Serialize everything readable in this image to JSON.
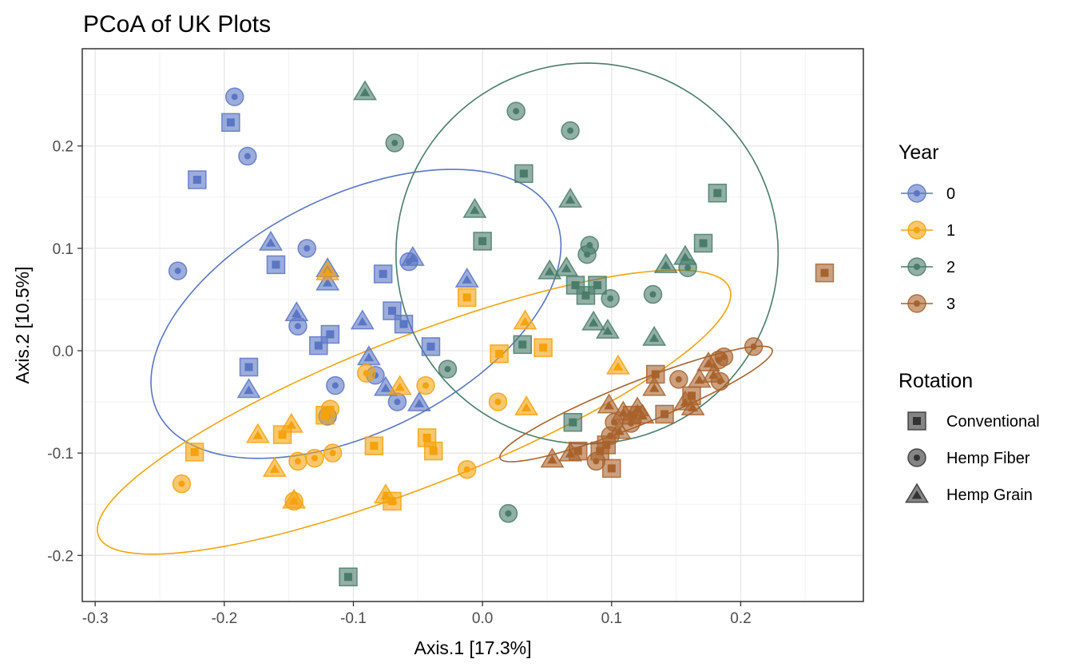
{
  "chart_data": {
    "type": "scatter",
    "title": "PCoA of UK Plots",
    "xlabel": "Axis.1   [17.3%]",
    "ylabel": "Axis.2   [10.5%]",
    "xlim": [
      -0.31,
      0.295
    ],
    "ylim": [
      -0.245,
      0.295
    ],
    "xticks": [
      -0.3,
      -0.2,
      -0.1,
      0.0,
      0.1,
      0.2
    ],
    "xtick_labels": [
      "-0.3",
      "-0.2",
      "-0.1",
      "0.0",
      "0.1",
      "0.2"
    ],
    "yticks": [
      -0.2,
      -0.1,
      0.0,
      0.1,
      0.2
    ],
    "ytick_labels": [
      "-0.2",
      "-0.1",
      "0.0",
      "0.1",
      "0.2"
    ],
    "grid": true,
    "legend_position": "right",
    "legend_year": {
      "title": "Year",
      "entries": [
        {
          "label": "0",
          "color": "#5a76c4"
        },
        {
          "label": "1",
          "color": "#f5a20c"
        },
        {
          "label": "2",
          "color": "#4a7c6a"
        },
        {
          "label": "3",
          "color": "#a8622c"
        }
      ]
    },
    "legend_rotation": {
      "title": "Rotation",
      "entries": [
        {
          "label": "Conventional",
          "shape": "square"
        },
        {
          "label": "Hemp Fiber",
          "shape": "circle"
        },
        {
          "label": "Hemp Grain",
          "shape": "triangle"
        }
      ]
    },
    "ellipses": [
      {
        "year": "0",
        "color": "#5a76c4",
        "cx": -0.098,
        "cy": 0.036,
        "rx": 0.183,
        "ry": 0.108,
        "angle_deg": 38
      },
      {
        "year": "1",
        "color": "#f5a20c",
        "cx": -0.053,
        "cy": -0.06,
        "rx": 0.273,
        "ry": 0.07,
        "angle_deg": 27
      },
      {
        "year": "2",
        "color": "#4a7c6a",
        "cx": 0.081,
        "cy": 0.095,
        "rx": 0.148,
        "ry": 0.186,
        "angle_deg": 0
      },
      {
        "year": "3",
        "color": "#a8622c",
        "cx": 0.119,
        "cy": -0.052,
        "rx": 0.118,
        "ry": 0.02,
        "angle_deg": 27
      }
    ],
    "series": [
      {
        "name": "0",
        "color": "#5a76c4",
        "points": [
          [
            -0.192,
            0.248,
            "circle"
          ],
          [
            -0.195,
            0.223,
            "square"
          ],
          [
            -0.182,
            0.19,
            "circle"
          ],
          [
            -0.221,
            0.167,
            "square"
          ],
          [
            -0.236,
            0.078,
            "circle"
          ],
          [
            -0.164,
            0.106,
            "triangle"
          ],
          [
            -0.16,
            0.084,
            "square"
          ],
          [
            -0.136,
            0.1,
            "circle"
          ],
          [
            -0.12,
            0.08,
            "triangle"
          ],
          [
            -0.12,
            0.067,
            "triangle"
          ],
          [
            -0.077,
            0.075,
            "square"
          ],
          [
            -0.057,
            0.087,
            "circle"
          ],
          [
            -0.054,
            0.091,
            "triangle"
          ],
          [
            -0.012,
            0.07,
            "triangle"
          ],
          [
            -0.144,
            0.037,
            "triangle"
          ],
          [
            -0.143,
            0.024,
            "circle"
          ],
          [
            -0.127,
            0.005,
            "square"
          ],
          [
            -0.118,
            0.016,
            "square"
          ],
          [
            -0.093,
            0.029,
            "triangle"
          ],
          [
            -0.07,
            0.039,
            "square"
          ],
          [
            -0.061,
            0.026,
            "square"
          ],
          [
            -0.04,
            0.004,
            "square"
          ],
          [
            -0.181,
            -0.016,
            "square"
          ],
          [
            -0.181,
            -0.038,
            "triangle"
          ],
          [
            -0.114,
            -0.034,
            "circle"
          ],
          [
            -0.088,
            -0.006,
            "triangle"
          ],
          [
            -0.083,
            -0.024,
            "circle"
          ],
          [
            -0.075,
            -0.036,
            "triangle"
          ],
          [
            -0.066,
            -0.05,
            "circle"
          ],
          [
            -0.049,
            -0.051,
            "triangle"
          ],
          [
            -0.12,
            -0.064,
            "circle"
          ]
        ]
      },
      {
        "name": "1",
        "color": "#f5a20c",
        "points": [
          [
            -0.012,
            0.052,
            "square"
          ],
          [
            0.033,
            0.029,
            "triangle"
          ],
          [
            0.013,
            -0.003,
            "square"
          ],
          [
            0.047,
            0.003,
            "square"
          ],
          [
            0.105,
            -0.015,
            "triangle"
          ],
          [
            0.012,
            -0.05,
            "circle"
          ],
          [
            0.034,
            -0.055,
            "triangle"
          ],
          [
            -0.12,
            0.077,
            "triangle"
          ],
          [
            -0.09,
            -0.022,
            "circle"
          ],
          [
            -0.064,
            -0.035,
            "triangle"
          ],
          [
            -0.044,
            -0.034,
            "circle"
          ],
          [
            -0.118,
            -0.057,
            "circle"
          ],
          [
            -0.148,
            -0.072,
            "triangle"
          ],
          [
            -0.155,
            -0.082,
            "square"
          ],
          [
            -0.174,
            -0.082,
            "triangle"
          ],
          [
            -0.122,
            -0.063,
            "square"
          ],
          [
            -0.143,
            -0.108,
            "circle"
          ],
          [
            -0.13,
            -0.105,
            "circle"
          ],
          [
            -0.116,
            -0.1,
            "circle"
          ],
          [
            -0.084,
            -0.093,
            "square"
          ],
          [
            -0.043,
            -0.085,
            "square"
          ],
          [
            -0.038,
            -0.098,
            "square"
          ],
          [
            -0.012,
            -0.116,
            "circle"
          ],
          [
            -0.223,
            -0.099,
            "square"
          ],
          [
            -0.233,
            -0.13,
            "circle"
          ],
          [
            -0.161,
            -0.115,
            "triangle"
          ],
          [
            -0.146,
            -0.146,
            "triangle"
          ],
          [
            -0.146,
            -0.147,
            "circle"
          ],
          [
            -0.075,
            -0.141,
            "triangle"
          ],
          [
            -0.07,
            -0.147,
            "square"
          ]
        ]
      },
      {
        "name": "2",
        "color": "#4a7c6a",
        "points": [
          [
            -0.091,
            0.253,
            "triangle"
          ],
          [
            0.026,
            0.234,
            "circle"
          ],
          [
            0.068,
            0.215,
            "circle"
          ],
          [
            -0.068,
            0.203,
            "circle"
          ],
          [
            0.032,
            0.173,
            "square"
          ],
          [
            0.182,
            0.154,
            "square"
          ],
          [
            0.068,
            0.148,
            "triangle"
          ],
          [
            -0.006,
            0.138,
            "triangle"
          ],
          [
            0.0,
            0.107,
            "square"
          ],
          [
            0.083,
            0.103,
            "circle"
          ],
          [
            0.081,
            0.094,
            "circle"
          ],
          [
            0.171,
            0.105,
            "square"
          ],
          [
            0.157,
            0.092,
            "triangle"
          ],
          [
            0.159,
            0.081,
            "circle"
          ],
          [
            0.142,
            0.084,
            "triangle"
          ],
          [
            0.065,
            0.081,
            "triangle"
          ],
          [
            0.052,
            0.078,
            "triangle"
          ],
          [
            0.072,
            0.064,
            "square"
          ],
          [
            0.089,
            0.064,
            "square"
          ],
          [
            0.08,
            0.054,
            "square"
          ],
          [
            0.099,
            0.051,
            "circle"
          ],
          [
            0.132,
            0.055,
            "circle"
          ],
          [
            0.086,
            0.028,
            "triangle"
          ],
          [
            0.097,
            0.02,
            "triangle"
          ],
          [
            0.133,
            0.013,
            "triangle"
          ],
          [
            0.031,
            0.006,
            "square"
          ],
          [
            -0.027,
            -0.018,
            "circle"
          ],
          [
            0.07,
            -0.07,
            "square"
          ],
          [
            0.02,
            -0.159,
            "circle"
          ],
          [
            -0.104,
            -0.221,
            "square"
          ]
        ]
      },
      {
        "name": "3",
        "color": "#a8622c",
        "points": [
          [
            0.265,
            0.076,
            "square"
          ],
          [
            0.21,
            0.004,
            "circle"
          ],
          [
            0.187,
            -0.006,
            "circle"
          ],
          [
            0.183,
            -0.009,
            "circle"
          ],
          [
            0.175,
            -0.012,
            "triangle"
          ],
          [
            0.179,
            -0.023,
            "triangle"
          ],
          [
            0.184,
            -0.03,
            "circle"
          ],
          [
            0.168,
            -0.028,
            "triangle"
          ],
          [
            0.152,
            -0.028,
            "circle"
          ],
          [
            0.134,
            -0.023,
            "square"
          ],
          [
            0.133,
            -0.036,
            "triangle"
          ],
          [
            0.162,
            -0.044,
            "square"
          ],
          [
            0.157,
            -0.05,
            "triangle"
          ],
          [
            0.163,
            -0.055,
            "triangle"
          ],
          [
            0.098,
            -0.053,
            "triangle"
          ],
          [
            0.109,
            -0.06,
            "triangle"
          ],
          [
            0.12,
            -0.056,
            "triangle"
          ],
          [
            0.116,
            -0.063,
            "square"
          ],
          [
            0.124,
            -0.063,
            "triangle"
          ],
          [
            0.141,
            -0.062,
            "square"
          ],
          [
            0.102,
            -0.07,
            "circle"
          ],
          [
            0.115,
            -0.071,
            "circle"
          ],
          [
            0.099,
            -0.083,
            "circle"
          ],
          [
            0.106,
            -0.078,
            "triangle"
          ],
          [
            0.096,
            -0.092,
            "square"
          ],
          [
            0.074,
            -0.098,
            "square"
          ],
          [
            0.068,
            -0.1,
            "triangle"
          ],
          [
            0.054,
            -0.106,
            "triangle"
          ],
          [
            0.088,
            -0.108,
            "circle"
          ],
          [
            0.091,
            -0.098,
            "square"
          ],
          [
            0.1,
            -0.115,
            "square"
          ]
        ]
      }
    ]
  }
}
